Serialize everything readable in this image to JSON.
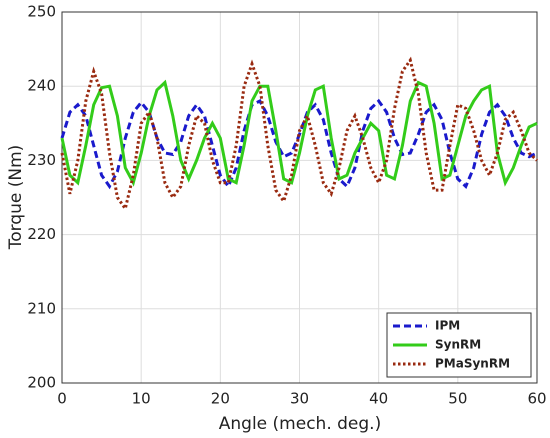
{
  "chart_data": {
    "type": "line",
    "x_label": "Angle (mech. deg.)",
    "y_label": "Torque (Nm)",
    "x": [
      0,
      1,
      2,
      3,
      4,
      5,
      6,
      7,
      8,
      9,
      10,
      11,
      12,
      13,
      14,
      15,
      16,
      17,
      18,
      19,
      20,
      21,
      22,
      23,
      24,
      25,
      26,
      27,
      28,
      29,
      30,
      31,
      32,
      33,
      34,
      35,
      36,
      37,
      38,
      39,
      40,
      41,
      42,
      43,
      44,
      45,
      46,
      47,
      48,
      49,
      50,
      51,
      52,
      53,
      54,
      55,
      56,
      57,
      58,
      59,
      60
    ],
    "series": [
      {
        "name": "IPM",
        "color": "#1a1acc",
        "style": "dashed",
        "values": [
          233,
          236.5,
          237.5,
          236,
          232,
          228,
          226.5,
          228.5,
          233,
          236.5,
          237.8,
          236.5,
          233,
          231,
          230.8,
          232.5,
          236,
          237.5,
          236,
          232,
          228,
          226.5,
          229,
          234,
          237.5,
          238,
          236,
          232.5,
          230.5,
          231,
          233.5,
          236.5,
          237.5,
          235.5,
          231,
          227.5,
          226.5,
          229,
          234,
          237,
          238,
          236.5,
          233,
          230.8,
          231,
          233.5,
          236.5,
          237.5,
          235.5,
          231,
          227.5,
          226.5,
          229,
          233.5,
          236.5,
          237.5,
          236,
          233,
          231,
          230.5,
          231
        ]
      },
      {
        "name": "SynRM",
        "color": "#33cc1a",
        "style": "solid",
        "values": [
          233,
          228,
          227,
          232,
          237.5,
          239.8,
          240,
          236,
          229,
          227,
          231,
          236,
          239.5,
          240.5,
          236,
          230,
          227.5,
          230,
          233,
          235,
          233,
          227.5,
          227,
          232,
          238,
          240,
          240,
          234,
          227.5,
          227,
          231,
          236,
          239.5,
          240,
          233,
          227.5,
          228,
          231,
          233,
          235,
          234,
          228,
          227.5,
          232,
          238,
          240.5,
          240,
          235,
          227.5,
          228,
          232,
          236,
          238,
          239.5,
          240,
          231,
          227,
          229,
          232,
          234.5,
          235
        ]
      },
      {
        "name": "PMaSynRM",
        "color": "#992a10",
        "style": "dotted",
        "values": [
          231,
          225.5,
          230,
          238,
          242,
          239,
          231,
          225,
          223.5,
          228,
          235,
          236.5,
          233,
          227,
          225,
          226.5,
          232,
          236,
          235,
          230,
          227,
          227,
          232,
          240,
          243,
          240,
          232,
          226,
          224.5,
          228,
          234,
          236,
          232,
          227,
          225.5,
          229,
          234,
          236,
          233,
          229,
          227,
          230,
          237,
          242,
          243.5,
          239,
          231,
          226,
          226,
          232,
          237.5,
          237,
          234,
          230,
          228,
          231,
          235.5,
          236.5,
          234,
          231,
          230
        ]
      }
    ],
    "xlim": [
      0,
      60
    ],
    "xticks": [
      0,
      10,
      20,
      30,
      40,
      50,
      60
    ],
    "ylim": [
      200,
      250
    ],
    "yticks": [
      200,
      210,
      220,
      230,
      240,
      250
    ],
    "grid": true,
    "legend": "lower right"
  }
}
